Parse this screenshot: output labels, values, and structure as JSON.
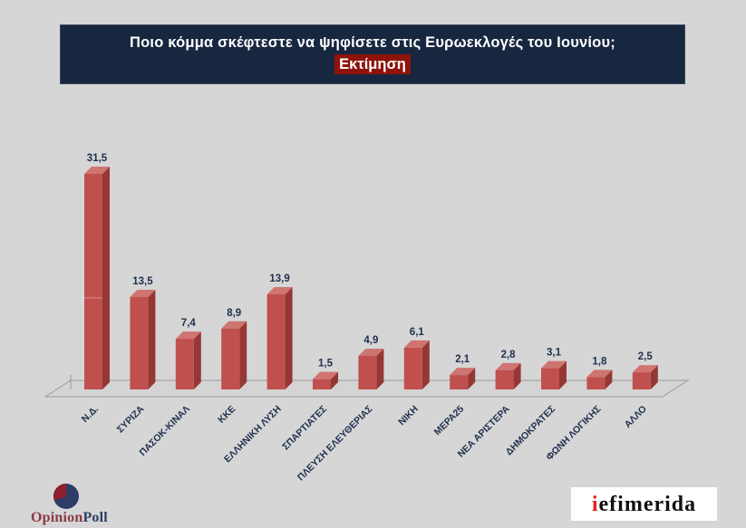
{
  "header": {
    "title_line1": "Ποιο κόμμα σκέφτεστε να ψηφίσετε στις Ευρωεκλογές του Ιουνίου;",
    "title_line2": "Εκτίμηση"
  },
  "chart_data": {
    "type": "bar",
    "style": "3d-column",
    "title": "Ποιο κόμμα σκέφτεστε να ψηφίσετε στις Ευρωεκλογές του Ιουνίου; Εκτίμηση",
    "categories": [
      "Ν.Δ.",
      "ΣΥΡΙΖΑ",
      "ΠΑΣΟΚ-ΚΙΝΑΛ",
      "ΚΚΕ",
      "ΕΛΛΗΝΙΚΗ ΛΥΣΗ",
      "ΣΠΑΡΤΙΑΤΕΣ",
      "ΠΛΕΥΣΗ ΕΛΕΥΘΕΡΙΑΣ",
      "ΝΙΚΗ",
      "ΜΕΡΑ25",
      "ΝΕΑ ΑΡΙΣΤΕΡΑ",
      "ΔΗΜΟΚΡΑΤΕΣ",
      "ΦΩΝΗ ΛΟΓΙΚΗΣ",
      "ΑΛΛΟ"
    ],
    "values": [
      31.5,
      13.5,
      7.4,
      8.9,
      13.9,
      1.5,
      4.9,
      6.1,
      2.1,
      2.8,
      3.1,
      1.8,
      2.5
    ],
    "value_labels": [
      "31,5",
      "13,5",
      "7,4",
      "8,9",
      "13,9",
      "1,5",
      "4,9",
      "6,1",
      "2,1",
      "2,8",
      "3,1",
      "1,8",
      "2,5"
    ],
    "xlabel": "",
    "ylabel": "",
    "ylim": [
      0,
      35
    ],
    "grid": false,
    "legend": false,
    "bar_color_front": "#c0504d",
    "bar_color_side": "#953734",
    "bar_color_top": "#cf7471",
    "label_color": "#20314f",
    "floor_stroke": "#9b9b9b"
  },
  "footer": {
    "opinionpoll": {
      "part1": "Opinion",
      "part2": "Poll",
      "icon": "pie-chart-logo",
      "pie_navy": "#2e3d66",
      "pie_red": "#8e1f2f"
    },
    "iefimerida": {
      "accent": "i",
      "rest": "efimerida",
      "accent_color": "#e8211a"
    }
  }
}
